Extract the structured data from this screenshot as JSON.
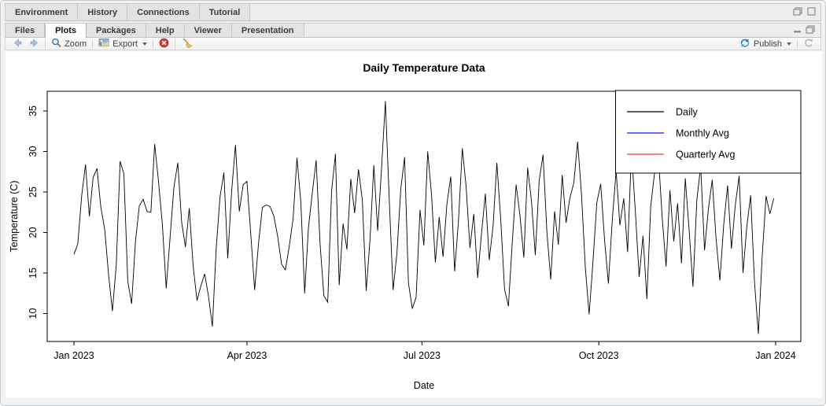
{
  "window": {
    "top_pane_tabs": [
      "Environment",
      "History",
      "Connections",
      "Tutorial"
    ],
    "bottom_pane_tabs": [
      "Files",
      "Plots",
      "Packages",
      "Help",
      "Viewer",
      "Presentation"
    ],
    "active_bottom_tab": "Plots",
    "window_icons": [
      "restore-icon",
      "maximize-icon",
      "minimize-icon",
      "restore-icon"
    ]
  },
  "toolbar": {
    "zoom_label": "Zoom",
    "export_label": "Export",
    "publish_label": "Publish",
    "icons": [
      "back-arrow-icon",
      "forward-arrow-icon",
      "zoom-magnifier-icon",
      "export-image-icon",
      "remove-plot-icon",
      "clear-all-broom-icon",
      "publish-icon",
      "refresh-icon"
    ]
  },
  "chart_data": {
    "type": "line",
    "title": "Daily Temperature Data",
    "xlabel": "Date",
    "ylabel": "Temperature (C)",
    "x_tick_labels": [
      "Jan 2023",
      "Apr 2023",
      "Jul 2023",
      "Oct 2023",
      "Jan 2024"
    ],
    "x_tick_days": [
      0,
      90,
      181,
      273,
      365
    ],
    "y_ticks": [
      10,
      15,
      20,
      25,
      30,
      35
    ],
    "ylim": [
      6.5,
      37.4
    ],
    "x_unit": "days since Jan 1 2023",
    "grid": false,
    "legend": {
      "position": "topright",
      "entries": [
        {
          "label": "Daily",
          "color": "#000000"
        },
        {
          "label": "Monthly Avg",
          "color": "#1414ff"
        },
        {
          "label": "Quarterly Avg",
          "color": "#ff3b3b"
        }
      ]
    },
    "series": [
      {
        "name": "Daily",
        "color": "#000000",
        "day_step": 2,
        "values": [
          17.3,
          18.6,
          24.5,
          28.4,
          22.0,
          26.8,
          27.9,
          23.1,
          20.4,
          14.8,
          10.3,
          16.0,
          28.8,
          27.2,
          14.0,
          11.2,
          18.9,
          23.3,
          24.1,
          22.6,
          22.5,
          30.9,
          26.3,
          21.0,
          13.1,
          19.4,
          25.6,
          28.6,
          21.3,
          18.2,
          23.0,
          15.9,
          11.6,
          13.4,
          14.9,
          12.1,
          8.4,
          18.0,
          24.4,
          27.4,
          16.8,
          25.0,
          30.8,
          22.6,
          25.9,
          26.3,
          19.8,
          12.9,
          18.6,
          23.1,
          23.4,
          23.2,
          22.0,
          19.5,
          16.1,
          15.4,
          18.3,
          21.7,
          29.2,
          23.8,
          12.5,
          20.6,
          24.9,
          28.9,
          18.7,
          12.2,
          11.4,
          25.1,
          29.7,
          13.5,
          21.1,
          17.9,
          26.6,
          22.4,
          27.8,
          24.0,
          12.8,
          19.2,
          28.3,
          20.2,
          27.9,
          36.2,
          24.1,
          12.9,
          17.5,
          25.4,
          29.3,
          13.8,
          10.6,
          12.0,
          22.8,
          18.4,
          30.0,
          24.6,
          16.3,
          21.9,
          17.0,
          23.5,
          26.9,
          15.2,
          21.4,
          30.4,
          25.7,
          18.1,
          22.3,
          14.4,
          19.9,
          24.8,
          16.6,
          20.8,
          28.6,
          21.6,
          13.0,
          10.9,
          18.8,
          25.9,
          22.1,
          16.9,
          28.0,
          23.9,
          17.2,
          26.4,
          29.6,
          20.1,
          14.2,
          22.6,
          18.5,
          27.1,
          21.2,
          24.3,
          26.1,
          31.2,
          24.7,
          15.6,
          9.9,
          16.4,
          23.7,
          26.0,
          19.1,
          13.7,
          21.5,
          27.6,
          20.9,
          24.2,
          17.6,
          30.1,
          22.7,
          14.5,
          19.6,
          11.8,
          23.2,
          27.3,
          29.5,
          21.8,
          15.8,
          25.2,
          18.9,
          23.6,
          16.2,
          26.7,
          20.3,
          13.3,
          24.0,
          28.2,
          17.8,
          22.9,
          26.5,
          19.3,
          14.1,
          21.0,
          25.8,
          18.0,
          23.4,
          27.0,
          15.0,
          20.7,
          24.6,
          13.9,
          7.5,
          17.1,
          24.5,
          22.3,
          24.2
        ]
      }
    ]
  }
}
